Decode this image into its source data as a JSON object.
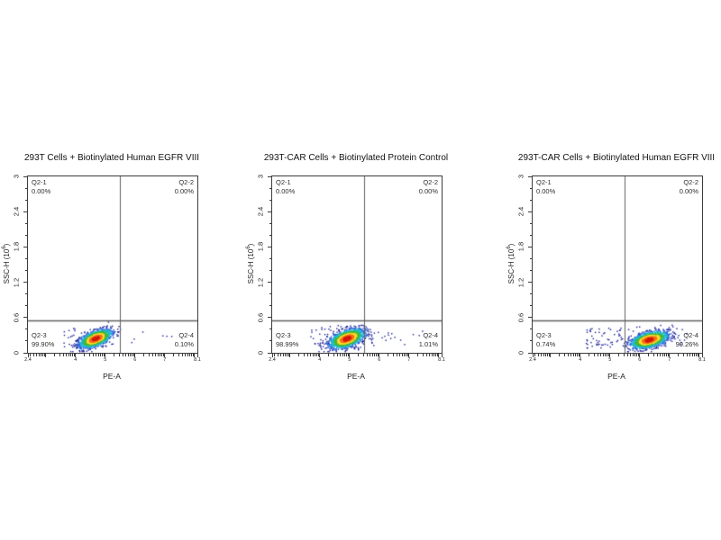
{
  "figure": {
    "background": "#ffffff",
    "gate_color": "#5f5f5f",
    "tick_color": "#3c3c3c"
  },
  "density_palette": [
    "#d41a0a",
    "#f4701a",
    "#ffd92b",
    "#43b93c",
    "#1cb8d2",
    "#2e63d8",
    "#181d96"
  ],
  "chart_data": [
    {
      "type": "scatter",
      "title": "293T Cells + Biotinylated Human EGFR VIII",
      "xlabel": "PE-A",
      "ylabel": {
        "prefix": "SSC-H (10",
        "exp": "6",
        "suffix": ")"
      },
      "x_scale": "log",
      "x_tick_base": "10",
      "x_tick_exponents": [
        "2.4",
        "4",
        "5",
        "6",
        "7",
        "8.1"
      ],
      "x_range_exp": [
        2.4,
        8.1
      ],
      "y_ticks": [
        "0",
        "0.6",
        "1.2",
        "1.8",
        "2.4",
        "3"
      ],
      "y_range": [
        0,
        3
      ],
      "gates": {
        "x_exp": 5.5,
        "y": 0.55
      },
      "quadrants": [
        {
          "label": "Q2-1",
          "value": "0.00%"
        },
        {
          "label": "Q2-2",
          "value": "0.00%"
        },
        {
          "label": "Q2-3",
          "value": "99.90%"
        },
        {
          "label": "Q2-4",
          "value": "0.10%"
        }
      ],
      "population": {
        "clusters": [
          {
            "x_exp": 4.68,
            "y": 0.24,
            "sx_dec": 0.26,
            "sy": 0.075,
            "tilt": 0.55,
            "n": 1600
          }
        ],
        "sparse": [
          {
            "x_exp_min": 3.6,
            "x_exp_max": 5.45,
            "y_min": 0.08,
            "y_max": 0.42,
            "n": 60
          },
          {
            "x_exp_min": 5.55,
            "x_exp_max": 7.4,
            "y_min": 0.15,
            "y_max": 0.36,
            "n": 6
          }
        ]
      }
    },
    {
      "type": "scatter",
      "title": "293T-CAR Cells + Biotinylated Protein Control",
      "xlabel": "PE-A",
      "ylabel": {
        "prefix": "SSC-H (10",
        "exp": "6",
        "suffix": ")"
      },
      "x_scale": "log",
      "x_tick_base": "10",
      "x_tick_exponents": [
        "2.4",
        "4",
        "5",
        "6",
        "7",
        "8.1"
      ],
      "x_range_exp": [
        2.4,
        8.1
      ],
      "y_ticks": [
        "0",
        "0.6",
        "1.2",
        "1.8",
        "2.4",
        "3"
      ],
      "y_range": [
        0,
        3
      ],
      "gates": {
        "x_exp": 5.5,
        "y": 0.55
      },
      "quadrants": [
        {
          "label": "Q2-1",
          "value": "0.00%"
        },
        {
          "label": "Q2-2",
          "value": "0.00%"
        },
        {
          "label": "Q2-3",
          "value": "98.99%"
        },
        {
          "label": "Q2-4",
          "value": "1.01%"
        }
      ],
      "population": {
        "clusters": [
          {
            "x_exp": 4.92,
            "y": 0.24,
            "sx_dec": 0.28,
            "sy": 0.08,
            "tilt": 0.5,
            "n": 1700
          }
        ],
        "sparse": [
          {
            "x_exp_min": 3.7,
            "x_exp_max": 5.4,
            "y_min": 0.06,
            "y_max": 0.45,
            "n": 70
          },
          {
            "x_exp_min": 5.6,
            "x_exp_max": 7.5,
            "y_min": 0.12,
            "y_max": 0.38,
            "n": 22
          }
        ]
      }
    },
    {
      "type": "scatter",
      "title": "293T-CAR Cells + Biotinylated Human EGFR VIII",
      "xlabel": "PE-A",
      "ylabel": {
        "prefix": "SSC-H (10",
        "exp": "6",
        "suffix": ")"
      },
      "x_scale": "log",
      "x_tick_base": "10",
      "x_tick_exponents": [
        "2.4",
        "4",
        "5",
        "6",
        "7",
        "8.1"
      ],
      "x_range_exp": [
        2.4,
        8.1
      ],
      "y_ticks": [
        "0",
        "0.6",
        "1.2",
        "1.8",
        "2.4",
        "3"
      ],
      "y_range": [
        0,
        3
      ],
      "gates": {
        "x_exp": 5.5,
        "y": 0.55
      },
      "quadrants": [
        {
          "label": "Q2-1",
          "value": "0.00%"
        },
        {
          "label": "Q2-2",
          "value": "0.00%"
        },
        {
          "label": "Q2-3",
          "value": "0.74%"
        },
        {
          "label": "Q2-4",
          "value": "99.26%"
        }
      ],
      "population": {
        "clusters": [
          {
            "x_exp": 6.33,
            "y": 0.22,
            "sx_dec": 0.3,
            "sy": 0.07,
            "tilt": 0.45,
            "n": 1700
          }
        ],
        "sparse": [
          {
            "x_exp_min": 4.2,
            "x_exp_max": 5.45,
            "y_min": 0.08,
            "y_max": 0.42,
            "n": 55
          },
          {
            "x_exp_min": 5.5,
            "x_exp_max": 7.6,
            "y_min": 0.1,
            "y_max": 0.45,
            "n": 30
          }
        ]
      }
    }
  ]
}
